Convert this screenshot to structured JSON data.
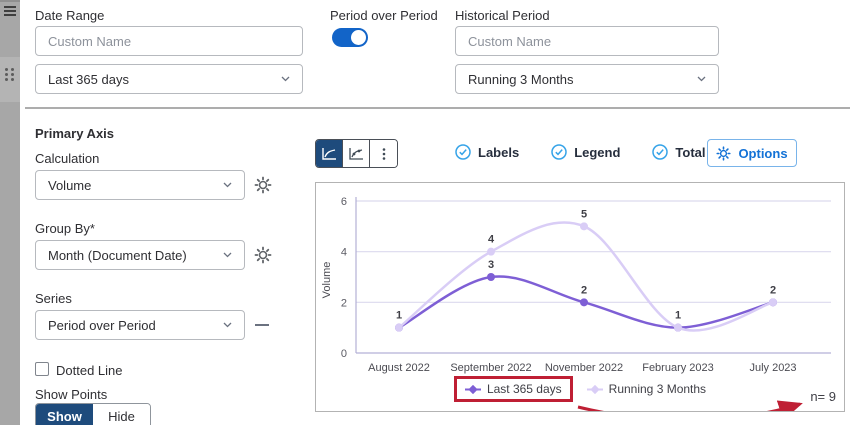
{
  "filters": {
    "date_range": {
      "label": "Date Range",
      "custom_name_placeholder": "Custom Name",
      "value": "Last 365 days"
    },
    "period_over_period": {
      "label": "Period over Period",
      "enabled": true
    },
    "historical_period": {
      "label": "Historical Period",
      "custom_name_placeholder": "Custom Name",
      "value": "Running 3 Months"
    }
  },
  "primary_axis": {
    "title": "Primary Axis",
    "calculation_label": "Calculation",
    "calculation_value": "Volume",
    "group_by_label": "Group By*",
    "group_by_value": "Month (Document Date)",
    "series_label": "Series",
    "series_value": "Period over Period",
    "dotted_line_label": "Dotted Line",
    "show_points_label": "Show Points",
    "show_label": "Show",
    "hide_label": "Hide",
    "show_points_selected": "Show"
  },
  "chart_toolbar": {
    "selected_chart_type": "line-chart",
    "labels_toggle": "Labels",
    "legend_toggle": "Legend",
    "total_toggle": "Total (N=)",
    "options_label": "Options"
  },
  "chart_data": {
    "type": "line",
    "categories": [
      "August 2022",
      "September 2022",
      "November 2022",
      "February 2023",
      "July 2023"
    ],
    "series": [
      {
        "name": "Last 365 days",
        "color": "#7e5fd5",
        "values": [
          1,
          3,
          2,
          1,
          2
        ]
      },
      {
        "name": "Running 3 Months",
        "color": "#d9cdf6",
        "values": [
          1,
          4,
          5,
          1,
          2
        ]
      }
    ],
    "ylabel": "Volume",
    "yticks": [
      0,
      2,
      4,
      6
    ],
    "ylim": [
      0,
      6
    ],
    "grid": true,
    "legend_position": "bottom",
    "point_labels_visible": true,
    "total_n": 9
  },
  "annotation": {
    "highlight_color": "#bf1f34",
    "highlighted_legend_item": "Last 365 days",
    "n_text": "n= 9"
  },
  "colors": {
    "accent_blue": "#1264c8",
    "navy": "#1e4b7c",
    "check_blue": "#35a3e8",
    "options_blue": "#1372d6",
    "grid_line": "#dcdaee",
    "axis_line": "#b3b1d6",
    "label_text": "#3f3f46"
  }
}
